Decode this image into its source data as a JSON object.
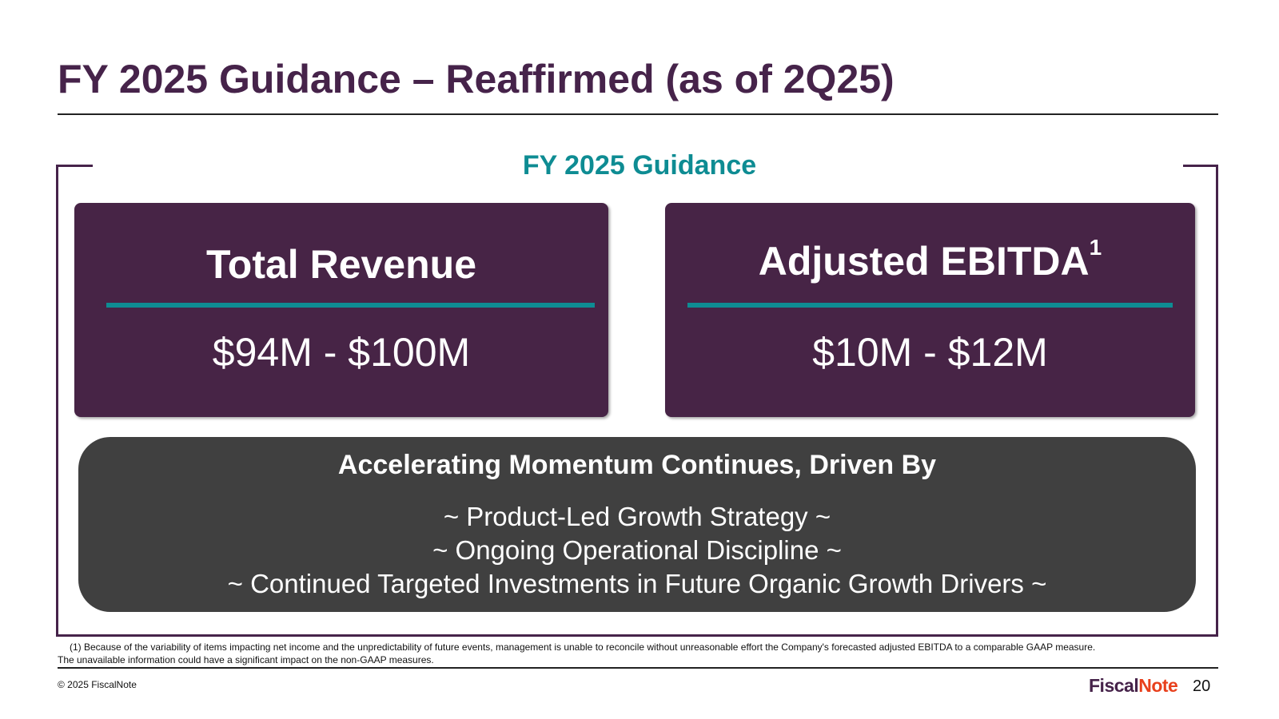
{
  "title": "FY 2025 Guidance – Reaffirmed (as of 2Q25)",
  "section_title": "FY 2025 Guidance",
  "cards": [
    {
      "label": "Total Revenue",
      "superscript": "",
      "value": "$94M - $100M"
    },
    {
      "label": "Adjusted EBITDA",
      "superscript": "1",
      "value": "$10M - $12M"
    }
  ],
  "momentum": {
    "heading": "Accelerating Momentum Continues, Driven By",
    "items": [
      "~ Product-Led Growth Strategy ~",
      "~ Ongoing Operational Discipline ~",
      "~ Continued Targeted Investments in Future Organic Growth Drivers ~"
    ]
  },
  "footnote": {
    "line1": "(1) Because of the variability of items impacting net income and the unpredictability of future events, management is unable to reconcile without unreasonable effort the Company's forecasted adjusted EBITDA to a comparable GAAP measure.",
    "line2": "The unavailable information could have a significant impact on the non-GAAP measures."
  },
  "copyright": "© 2025 FiscalNote",
  "logo": {
    "part1": "Fiscal",
    "part2": "Note"
  },
  "page_number": "20",
  "colors": {
    "brand_purple": "#46234a",
    "accent_teal": "#0e8c93",
    "logo_orange": "#e8401c",
    "panel_gray": "#404040"
  }
}
